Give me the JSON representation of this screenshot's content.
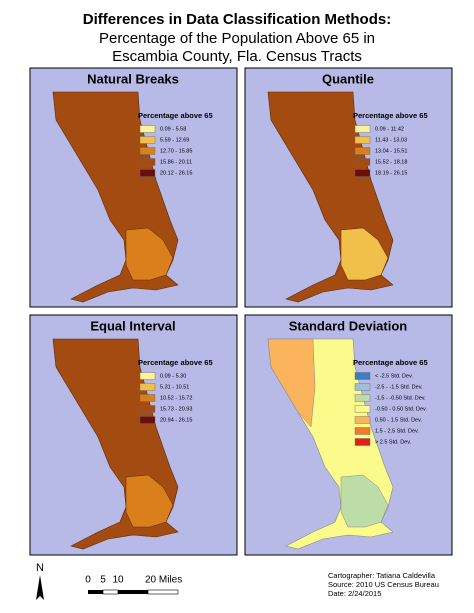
{
  "header": {
    "title": "Differences in Data Classification Methods:",
    "subtitle_lines": [
      "Percentage of the Population Above 65 in",
      "Escambia County, Fla. Census Tracts"
    ]
  },
  "panels": [
    {
      "title": "Natural Breaks",
      "legend_title": "Percentage above 65",
      "legend": [
        {
          "label": "0.09 - 5.58",
          "color": "#fbf29a"
        },
        {
          "label": "5.59 - 12.69",
          "color": "#f1c04a"
        },
        {
          "label": "12.70 - 15.85",
          "color": "#d97f1c"
        },
        {
          "label": "15.86 - 20.11",
          "color": "#a44b12"
        },
        {
          "label": "20.12 - 26.15",
          "color": "#6a0d0d"
        }
      ]
    },
    {
      "title": "Quantile",
      "legend_title": "Percentage above 65",
      "legend": [
        {
          "label": "0.09 - 11.42",
          "color": "#fbf29a"
        },
        {
          "label": "11.43 - 13.03",
          "color": "#f1c04a"
        },
        {
          "label": "13.04 - 15.51",
          "color": "#d97f1c"
        },
        {
          "label": "15.52 - 18.18",
          "color": "#a44b12"
        },
        {
          "label": "18.19 - 26.15",
          "color": "#6a0d0d"
        }
      ]
    },
    {
      "title": "Equal Interval",
      "legend_title": "Percentage above 65",
      "legend": [
        {
          "label": "0.09 - 5.30",
          "color": "#fbf29a"
        },
        {
          "label": "5.31 - 10.51",
          "color": "#f1c04a"
        },
        {
          "label": "10.52 - 15.72",
          "color": "#d97f1c"
        },
        {
          "label": "15.73 - 20.93",
          "color": "#a44b12"
        },
        {
          "label": "20.94 - 26.15",
          "color": "#6a0d0d"
        }
      ]
    },
    {
      "title": "Standard Deviation",
      "legend_title": "Percentage above 65",
      "legend": [
        {
          "label": "< -2.5 Std. Dev.",
          "color": "#3a7fc0"
        },
        {
          "label": "-2.5 - -1.5 Std. Dev.",
          "color": "#9cc0d8"
        },
        {
          "label": "-1.5 - -0.50 Std. Dev.",
          "color": "#bcdca8"
        },
        {
          "label": "-0.50 - 0.50 Std. Dev.",
          "color": "#fbfb8c"
        },
        {
          "label": "0.50 - 1.5 Std. Dev.",
          "color": "#fbb35c"
        },
        {
          "label": "1.5 - 2.5 Std. Dev.",
          "color": "#ef7a2c"
        },
        {
          "label": "> 2.5 Std. Dev.",
          "color": "#e0201c"
        }
      ]
    }
  ],
  "scale_bar": {
    "labels": [
      "0",
      "5",
      "10",
      "20 Miles"
    ]
  },
  "north_arrow": "N",
  "credits": [
    "Cartographer: Tatiana Caldevilla",
    "Source: 2010 US Census Bureau",
    "Date: 2/24/2015"
  ]
}
